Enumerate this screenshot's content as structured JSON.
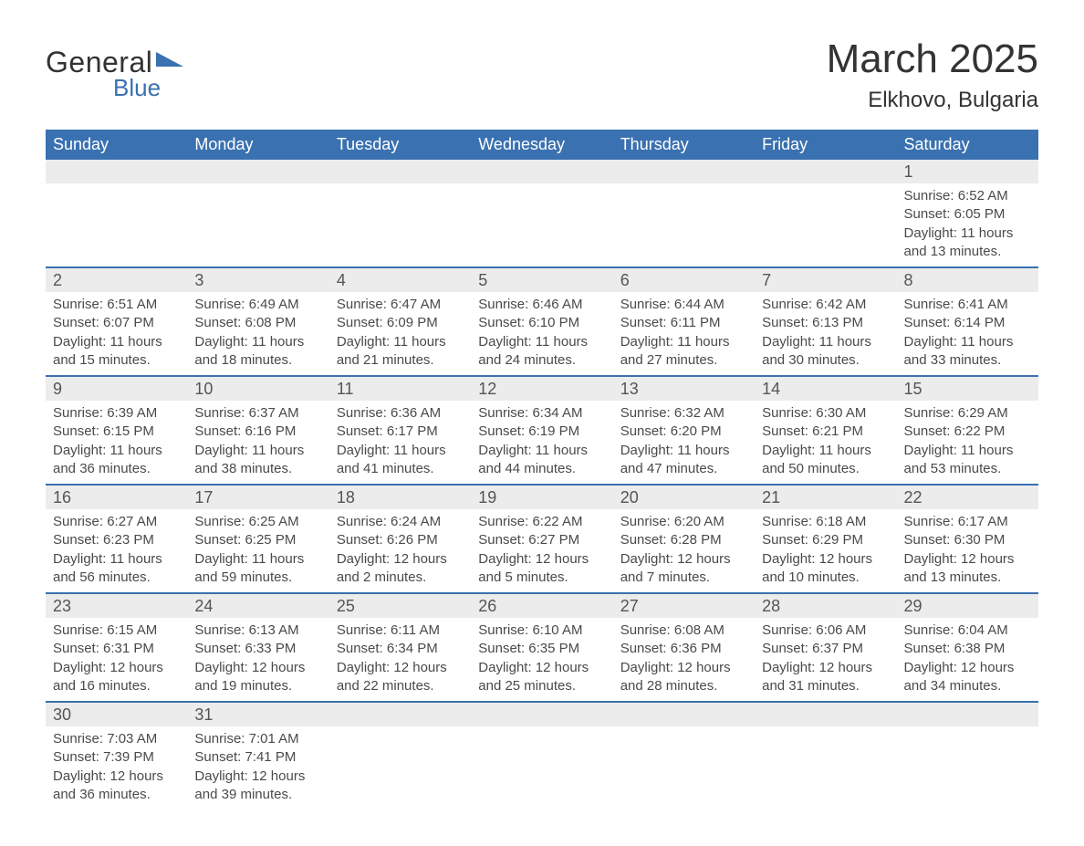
{
  "logo": {
    "word1": "General",
    "word2": "Blue"
  },
  "title": "March 2025",
  "location": "Elkhovo, Bulgaria",
  "colors": {
    "header_bg": "#3a71b0",
    "header_text": "#ffffff",
    "daynum_bg": "#ececec",
    "row_border": "#3a71b0",
    "body_text": "#4a4a4a",
    "page_bg": "#ffffff"
  },
  "fonts": {
    "title_size_pt": 33,
    "location_size_pt": 18,
    "header_size_pt": 14,
    "daynum_size_pt": 14,
    "detail_size_pt": 11
  },
  "day_headers": [
    "Sunday",
    "Monday",
    "Tuesday",
    "Wednesday",
    "Thursday",
    "Friday",
    "Saturday"
  ],
  "weeks": [
    [
      null,
      null,
      null,
      null,
      null,
      null,
      {
        "n": "1",
        "sr": "6:52 AM",
        "ss": "6:05 PM",
        "dl": "11 hours and 13 minutes."
      }
    ],
    [
      {
        "n": "2",
        "sr": "6:51 AM",
        "ss": "6:07 PM",
        "dl": "11 hours and 15 minutes."
      },
      {
        "n": "3",
        "sr": "6:49 AM",
        "ss": "6:08 PM",
        "dl": "11 hours and 18 minutes."
      },
      {
        "n": "4",
        "sr": "6:47 AM",
        "ss": "6:09 PM",
        "dl": "11 hours and 21 minutes."
      },
      {
        "n": "5",
        "sr": "6:46 AM",
        "ss": "6:10 PM",
        "dl": "11 hours and 24 minutes."
      },
      {
        "n": "6",
        "sr": "6:44 AM",
        "ss": "6:11 PM",
        "dl": "11 hours and 27 minutes."
      },
      {
        "n": "7",
        "sr": "6:42 AM",
        "ss": "6:13 PM",
        "dl": "11 hours and 30 minutes."
      },
      {
        "n": "8",
        "sr": "6:41 AM",
        "ss": "6:14 PM",
        "dl": "11 hours and 33 minutes."
      }
    ],
    [
      {
        "n": "9",
        "sr": "6:39 AM",
        "ss": "6:15 PM",
        "dl": "11 hours and 36 minutes."
      },
      {
        "n": "10",
        "sr": "6:37 AM",
        "ss": "6:16 PM",
        "dl": "11 hours and 38 minutes."
      },
      {
        "n": "11",
        "sr": "6:36 AM",
        "ss": "6:17 PM",
        "dl": "11 hours and 41 minutes."
      },
      {
        "n": "12",
        "sr": "6:34 AM",
        "ss": "6:19 PM",
        "dl": "11 hours and 44 minutes."
      },
      {
        "n": "13",
        "sr": "6:32 AM",
        "ss": "6:20 PM",
        "dl": "11 hours and 47 minutes."
      },
      {
        "n": "14",
        "sr": "6:30 AM",
        "ss": "6:21 PM",
        "dl": "11 hours and 50 minutes."
      },
      {
        "n": "15",
        "sr": "6:29 AM",
        "ss": "6:22 PM",
        "dl": "11 hours and 53 minutes."
      }
    ],
    [
      {
        "n": "16",
        "sr": "6:27 AM",
        "ss": "6:23 PM",
        "dl": "11 hours and 56 minutes."
      },
      {
        "n": "17",
        "sr": "6:25 AM",
        "ss": "6:25 PM",
        "dl": "11 hours and 59 minutes."
      },
      {
        "n": "18",
        "sr": "6:24 AM",
        "ss": "6:26 PM",
        "dl": "12 hours and 2 minutes."
      },
      {
        "n": "19",
        "sr": "6:22 AM",
        "ss": "6:27 PM",
        "dl": "12 hours and 5 minutes."
      },
      {
        "n": "20",
        "sr": "6:20 AM",
        "ss": "6:28 PM",
        "dl": "12 hours and 7 minutes."
      },
      {
        "n": "21",
        "sr": "6:18 AM",
        "ss": "6:29 PM",
        "dl": "12 hours and 10 minutes."
      },
      {
        "n": "22",
        "sr": "6:17 AM",
        "ss": "6:30 PM",
        "dl": "12 hours and 13 minutes."
      }
    ],
    [
      {
        "n": "23",
        "sr": "6:15 AM",
        "ss": "6:31 PM",
        "dl": "12 hours and 16 minutes."
      },
      {
        "n": "24",
        "sr": "6:13 AM",
        "ss": "6:33 PM",
        "dl": "12 hours and 19 minutes."
      },
      {
        "n": "25",
        "sr": "6:11 AM",
        "ss": "6:34 PM",
        "dl": "12 hours and 22 minutes."
      },
      {
        "n": "26",
        "sr": "6:10 AM",
        "ss": "6:35 PM",
        "dl": "12 hours and 25 minutes."
      },
      {
        "n": "27",
        "sr": "6:08 AM",
        "ss": "6:36 PM",
        "dl": "12 hours and 28 minutes."
      },
      {
        "n": "28",
        "sr": "6:06 AM",
        "ss": "6:37 PM",
        "dl": "12 hours and 31 minutes."
      },
      {
        "n": "29",
        "sr": "6:04 AM",
        "ss": "6:38 PM",
        "dl": "12 hours and 34 minutes."
      }
    ],
    [
      {
        "n": "30",
        "sr": "7:03 AM",
        "ss": "7:39 PM",
        "dl": "12 hours and 36 minutes."
      },
      {
        "n": "31",
        "sr": "7:01 AM",
        "ss": "7:41 PM",
        "dl": "12 hours and 39 minutes."
      },
      null,
      null,
      null,
      null,
      null
    ]
  ],
  "labels": {
    "sunrise": "Sunrise: ",
    "sunset": "Sunset: ",
    "daylight": "Daylight: "
  }
}
